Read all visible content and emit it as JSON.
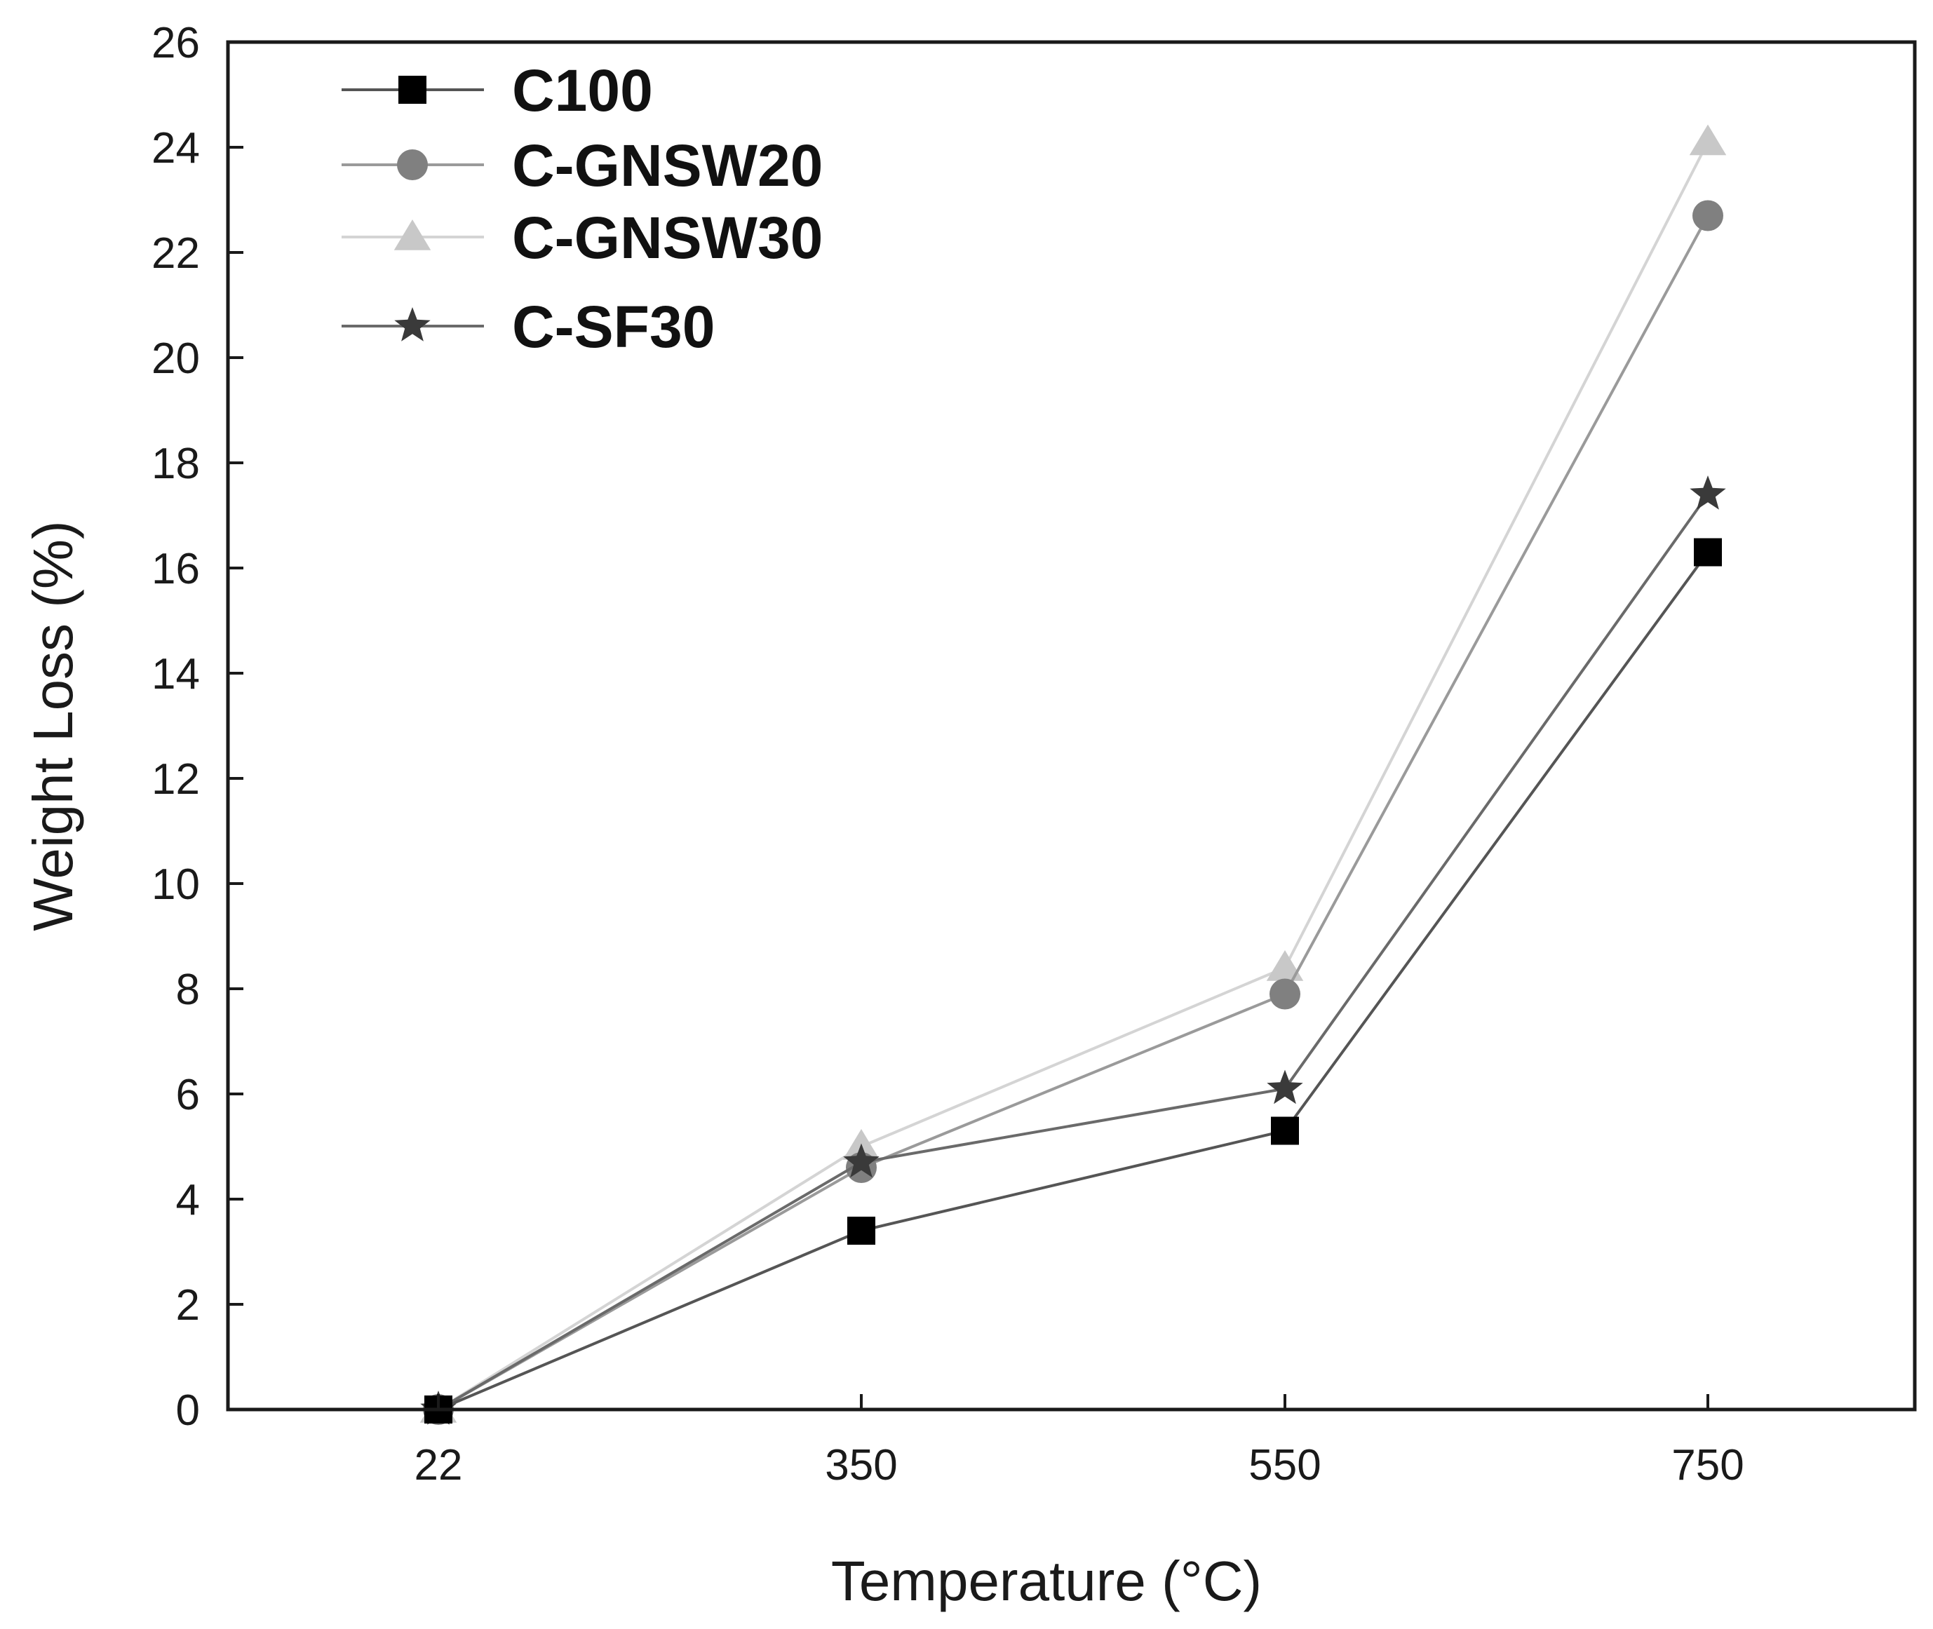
{
  "chart_data": {
    "type": "line",
    "title": "",
    "xlabel": "Temperature (°C)",
    "ylabel": "Weight Loss (%)",
    "categories": [
      "22",
      "350",
      "550",
      "750"
    ],
    "ylim": [
      0,
      26
    ],
    "yticks": [
      "0",
      "2",
      "4",
      "6",
      "8",
      "10",
      "12",
      "14",
      "16",
      "18",
      "20",
      "22",
      "24",
      "26"
    ],
    "legend_position": "top-left",
    "grid": false,
    "series": [
      {
        "name": "C100",
        "marker": "square",
        "color": "#000000",
        "line_color": "#555555",
        "values": [
          0,
          3.4,
          5.3,
          16.3
        ]
      },
      {
        "name": "C-GNSW20",
        "marker": "circle",
        "color": "#808080",
        "line_color": "#9a9a9a",
        "values": [
          0,
          4.6,
          7.9,
          22.7
        ]
      },
      {
        "name": "C-GNSW30",
        "marker": "triangle",
        "color": "#c8c8c8",
        "line_color": "#d4d4d4",
        "values": [
          0,
          5.0,
          8.4,
          24.1
        ]
      },
      {
        "name": "C-SF30",
        "marker": "star",
        "color": "#3a3a3a",
        "line_color": "#6a6a6a",
        "values": [
          0,
          4.7,
          6.1,
          17.4
        ]
      }
    ]
  }
}
